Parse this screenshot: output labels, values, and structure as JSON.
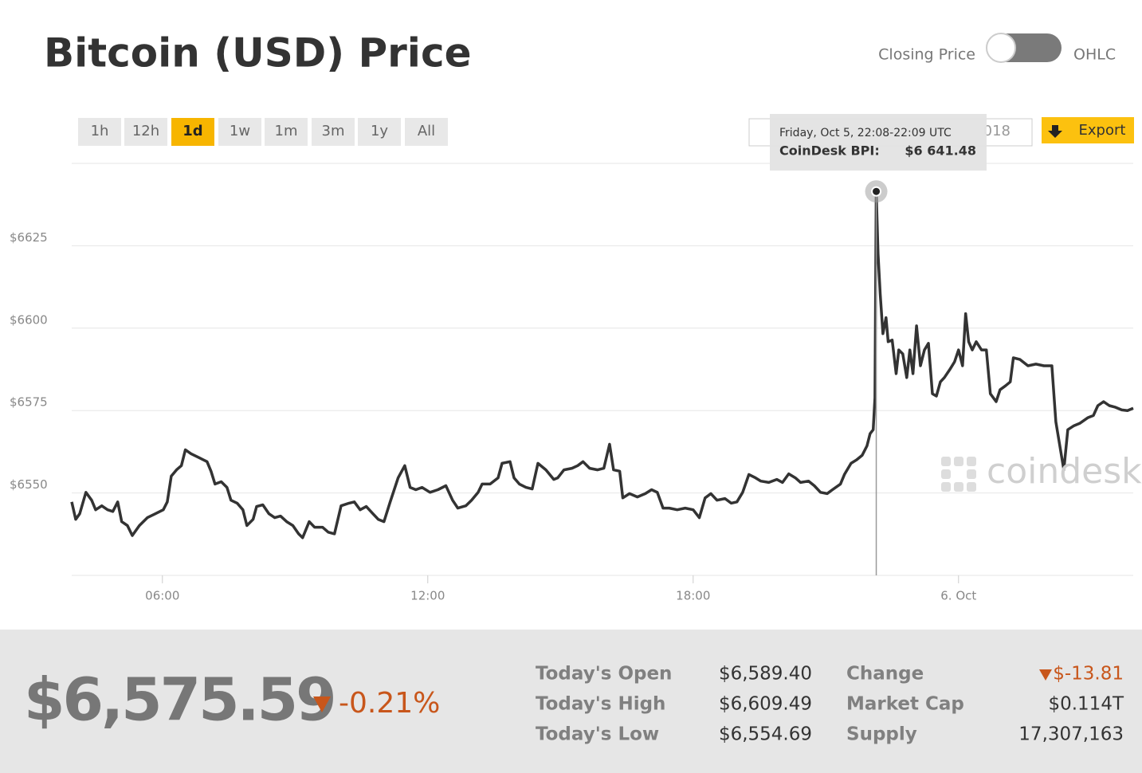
{
  "header": {
    "title": "Bitcoin (USD) Price",
    "toggle_left": "Closing Price",
    "toggle_right": "OHLC"
  },
  "ranges": [
    "1h",
    "12h",
    "1d",
    "1w",
    "1m",
    "3m",
    "1y",
    "All"
  ],
  "active_range": "1d",
  "date_input": "018",
  "export": "Export",
  "chart_data": {
    "type": "line",
    "xlim": [
      3.95,
      27.95
    ],
    "ylim": [
      6525,
      6650
    ],
    "xticks": [
      {
        "value": 6,
        "label": "06:00"
      },
      {
        "value": 12,
        "label": "12:00"
      },
      {
        "value": 18,
        "label": "18:00"
      },
      {
        "value": 24,
        "label": "6. Oct"
      }
    ],
    "yticks": [
      {
        "value": 6550,
        "label": "$6550"
      },
      {
        "value": 6575,
        "label": "$6575"
      },
      {
        "value": 6600,
        "label": "$6600"
      },
      {
        "value": 6625,
        "label": "$6625"
      }
    ],
    "grid": true,
    "watermark": "coindesk",
    "series": [
      {
        "color": "#333333",
        "x": [
          3.95,
          4.04,
          4.13,
          4.27,
          4.4,
          4.49,
          4.63,
          4.76,
          4.88,
          4.99,
          5.08,
          5.21,
          5.32,
          5.48,
          5.66,
          5.84,
          6.02,
          6.11,
          6.2,
          6.32,
          6.43,
          6.52,
          6.65,
          6.83,
          7.01,
          7.1,
          7.19,
          7.33,
          7.46,
          7.55,
          7.69,
          7.82,
          7.91,
          8.05,
          8.13,
          8.27,
          8.41,
          8.54,
          8.67,
          8.81,
          8.95,
          9.08,
          9.17,
          9.32,
          9.44,
          9.62,
          9.75,
          9.89,
          10.04,
          10.22,
          10.34,
          10.47,
          10.61,
          10.76,
          10.88,
          11.01,
          11.15,
          11.33,
          11.48,
          11.6,
          11.73,
          11.87,
          12.05,
          12.23,
          12.41,
          12.56,
          12.68,
          12.86,
          12.99,
          13.14,
          13.23,
          13.41,
          13.59,
          13.68,
          13.86,
          13.95,
          14.07,
          14.22,
          14.36,
          14.49,
          14.67,
          14.85,
          14.94,
          15.08,
          15.26,
          15.39,
          15.51,
          15.66,
          15.84,
          15.98,
          16.11,
          16.2,
          16.34,
          16.41,
          16.56,
          16.74,
          16.92,
          17.06,
          17.19,
          17.32,
          17.46,
          17.64,
          17.82,
          18.0,
          18.14,
          18.27,
          18.4,
          18.54,
          18.72,
          18.86,
          18.99,
          19.12,
          19.26,
          19.41,
          19.53,
          19.71,
          19.89,
          20.02,
          20.16,
          20.31,
          20.43,
          20.61,
          20.74,
          20.88,
          21.03,
          21.15,
          21.33,
          21.42,
          21.57,
          21.69,
          21.82,
          21.93,
          22.0,
          22.07,
          22.11,
          22.14,
          22.18,
          22.23,
          22.29,
          22.36,
          22.41,
          22.5,
          22.59,
          22.65,
          22.74,
          22.83,
          22.9,
          22.97,
          23.05,
          23.14,
          23.23,
          23.32,
          23.41,
          23.5,
          23.59,
          23.68,
          23.8,
          23.91,
          24.0,
          24.09,
          24.16,
          24.23,
          24.31,
          24.4,
          24.52,
          24.63,
          24.72,
          24.85,
          24.94,
          25.06,
          25.17,
          25.24,
          25.39,
          25.57,
          25.75,
          25.93,
          26.11,
          26.2,
          26.29,
          26.38,
          26.47,
          26.61,
          26.74,
          26.92,
          27.05,
          27.15,
          27.28,
          27.41,
          27.55,
          27.69,
          27.82,
          27.95
        ],
        "values": [
          6547.3,
          6542.0,
          6543.7,
          6550.2,
          6547.8,
          6544.9,
          6546.1,
          6544.9,
          6544.4,
          6547.3,
          6541.3,
          6540.1,
          6537.1,
          6540.1,
          6542.5,
          6543.7,
          6544.9,
          6547.3,
          6555.1,
          6557.0,
          6558.3,
          6563.1,
          6561.9,
          6560.7,
          6559.5,
          6556.6,
          6552.7,
          6553.4,
          6551.7,
          6547.8,
          6546.9,
          6544.9,
          6540.1,
          6542.0,
          6545.9,
          6546.4,
          6543.7,
          6542.5,
          6543.0,
          6541.3,
          6540.1,
          6537.6,
          6536.4,
          6541.3,
          6539.6,
          6539.6,
          6538.1,
          6537.6,
          6546.1,
          6546.9,
          6547.3,
          6544.9,
          6545.9,
          6543.7,
          6542.0,
          6541.3,
          6547.3,
          6554.6,
          6558.3,
          6551.7,
          6551.0,
          6551.7,
          6550.2,
          6551.0,
          6552.2,
          6547.8,
          6545.4,
          6546.1,
          6547.8,
          6550.2,
          6552.7,
          6552.7,
          6554.6,
          6559.0,
          6559.5,
          6554.6,
          6552.7,
          6551.7,
          6551.2,
          6559.0,
          6557.0,
          6554.1,
          6554.6,
          6557.0,
          6557.5,
          6558.3,
          6559.5,
          6557.5,
          6557.0,
          6557.5,
          6564.8,
          6557.0,
          6556.6,
          6548.5,
          6549.8,
          6548.8,
          6549.8,
          6551.0,
          6550.2,
          6545.4,
          6545.4,
          6544.9,
          6545.4,
          6544.9,
          6542.5,
          6548.5,
          6549.8,
          6547.8,
          6548.3,
          6546.9,
          6547.3,
          6550.2,
          6555.6,
          6554.6,
          6553.6,
          6553.2,
          6554.1,
          6553.2,
          6555.8,
          6554.6,
          6553.2,
          6553.6,
          6552.2,
          6550.2,
          6549.8,
          6551.0,
          6552.7,
          6555.6,
          6559.0,
          6560.0,
          6561.4,
          6564.3,
          6568.0,
          6569.2,
          6578.9,
          6641.48,
          6622.6,
          6610.4,
          6598.3,
          6603.2,
          6595.9,
          6596.4,
          6586.2,
          6593.4,
          6592.2,
          6585.0,
          6593.4,
          6586.2,
          6600.7,
          6588.6,
          6593.4,
          6595.4,
          6580.1,
          6579.4,
          6583.7,
          6585.0,
          6587.4,
          6589.8,
          6593.4,
          6588.6,
          6604.4,
          6595.9,
          6593.4,
          6595.9,
          6593.4,
          6593.4,
          6580.1,
          6577.7,
          6581.3,
          6582.5,
          6583.7,
          6591.0,
          6590.5,
          6588.6,
          6589.1,
          6588.6,
          6588.6,
          6571.6,
          6564.3,
          6557.0,
          6569.2,
          6570.4,
          6571.1,
          6572.8,
          6573.5,
          6576.5,
          6577.7,
          6576.5,
          6576.0,
          6575.2,
          6575.0,
          6575.7
        ]
      }
    ]
  },
  "tooltip": {
    "date": "Friday, Oct 5, 22:08-22:09 UTC",
    "label": "CoinDesk BPI:",
    "value": "$6 641.48"
  },
  "summary": {
    "price": "$6,575.59",
    "change_pct": "-0.21%",
    "stats": [
      [
        "Today's Open",
        "$6,589.40"
      ],
      [
        "Today's High",
        "$6,609.49"
      ],
      [
        "Today's Low",
        "$6,554.69"
      ]
    ],
    "stats2": [
      [
        "Change",
        "$-13.81"
      ],
      [
        "Market Cap",
        "$0.114T"
      ],
      [
        "Supply",
        "17,307,163"
      ]
    ]
  }
}
